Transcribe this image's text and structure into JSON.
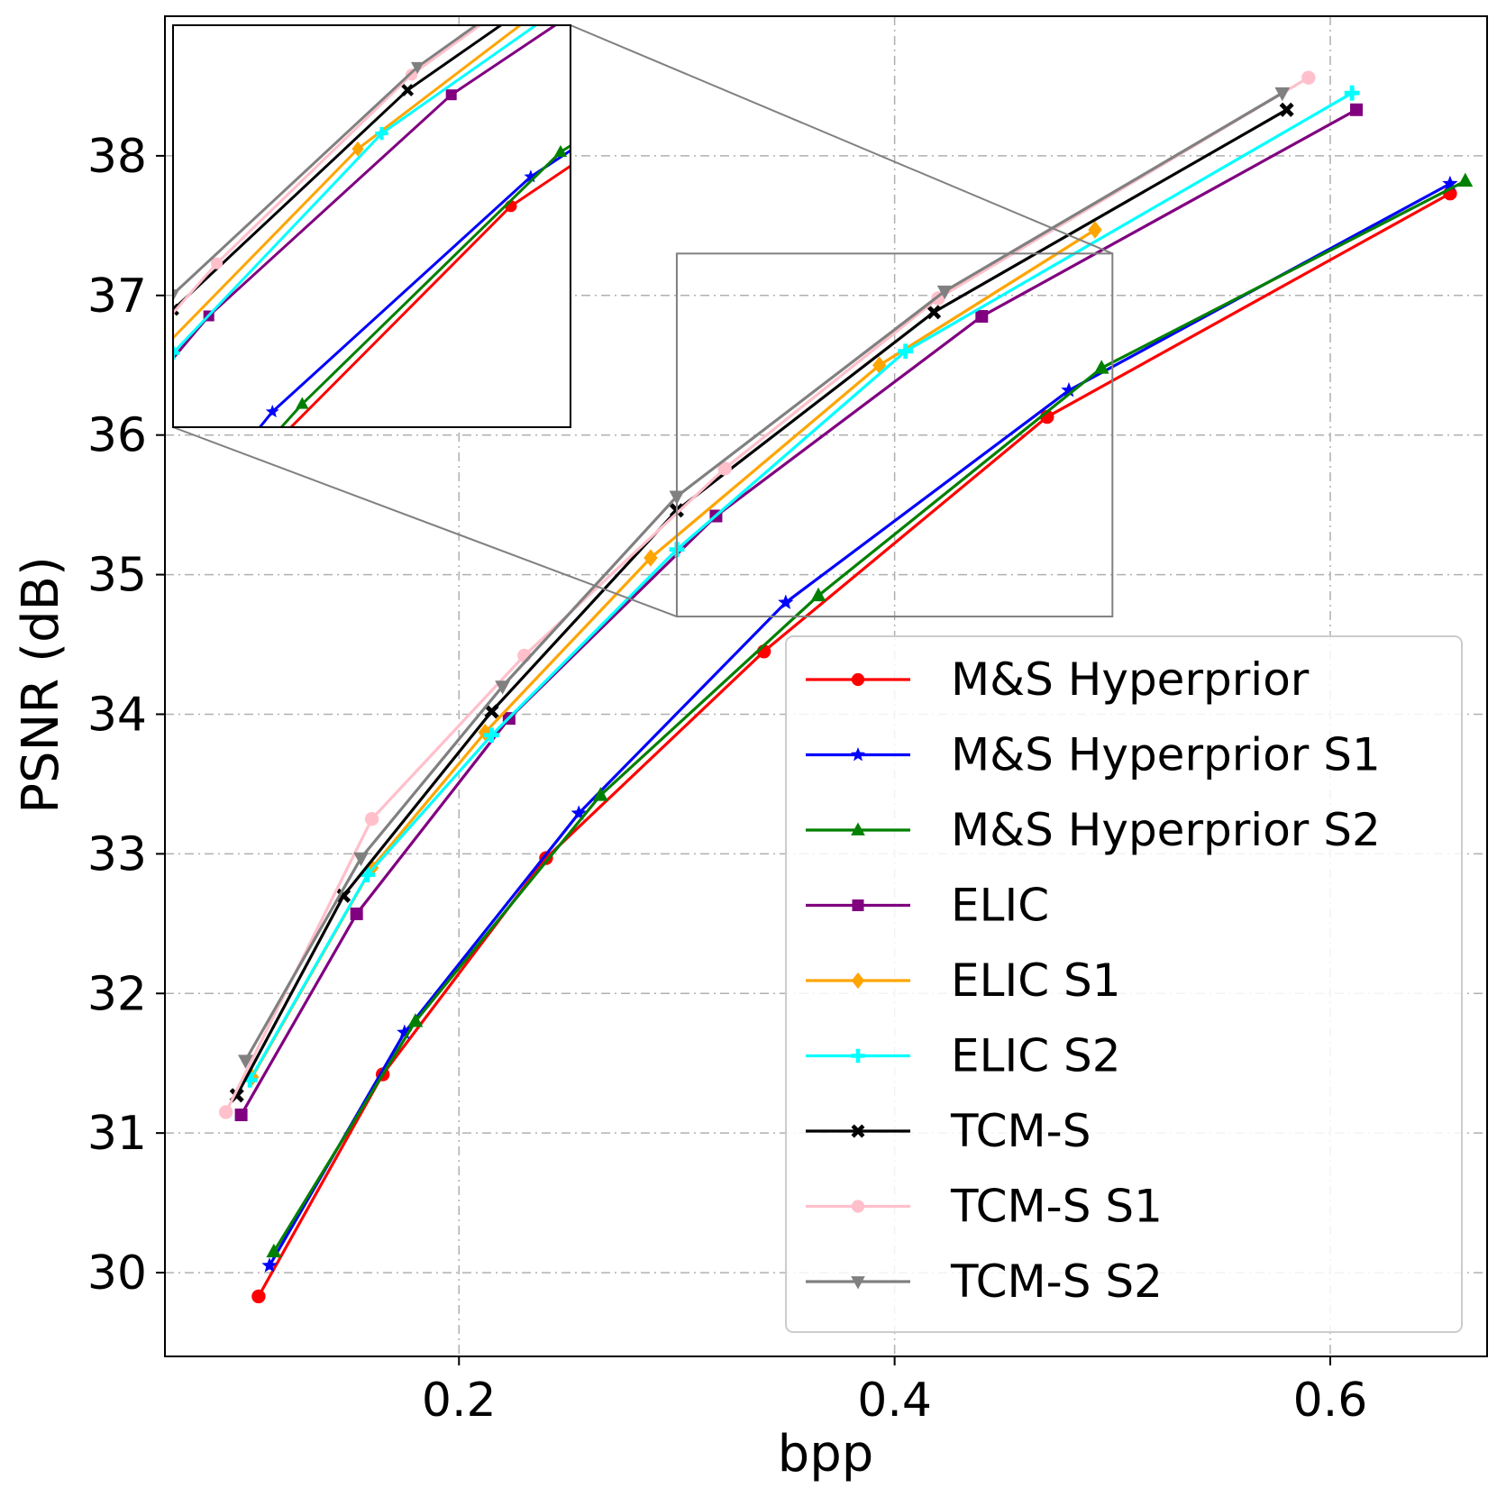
{
  "chart_data": {
    "type": "line",
    "xlabel": "bpp",
    "ylabel": "PSNR (dB)",
    "xlim": [
      0.065,
      0.672
    ],
    "ylim": [
      29.4,
      39.0
    ],
    "xticks": [
      "0.2",
      "0.4",
      "0.6"
    ],
    "xtick_values": [
      0.2,
      0.4,
      0.6
    ],
    "yticks": [
      "30",
      "31",
      "32",
      "33",
      "34",
      "35",
      "36",
      "37",
      "38"
    ],
    "ytick_values": [
      30,
      31,
      32,
      33,
      34,
      35,
      36,
      37,
      38
    ],
    "grid": true,
    "legend_position": "bottom-right",
    "zoom_region": {
      "x": [
        0.3,
        0.5
      ],
      "y": [
        34.7,
        37.3
      ]
    },
    "series": [
      {
        "name": "M&S Hyperprior",
        "color": "#ff0000",
        "marker": "circle",
        "points": [
          [
            0.108,
            29.83
          ],
          [
            0.165,
            31.42
          ],
          [
            0.24,
            32.97
          ],
          [
            0.34,
            34.45
          ],
          [
            0.47,
            36.13
          ],
          [
            0.655,
            37.73
          ]
        ]
      },
      {
        "name": "M&S Hyperprior S1",
        "color": "#0000ff",
        "marker": "star",
        "points": [
          [
            0.113,
            30.05
          ],
          [
            0.175,
            31.72
          ],
          [
            0.255,
            33.29
          ],
          [
            0.35,
            34.8
          ],
          [
            0.48,
            36.32
          ],
          [
            0.655,
            37.8
          ]
        ]
      },
      {
        "name": "M&S Hyperprior S2",
        "color": "#008000",
        "marker": "triangle-up",
        "points": [
          [
            0.115,
            30.15
          ],
          [
            0.18,
            31.8
          ],
          [
            0.265,
            33.42
          ],
          [
            0.365,
            34.85
          ],
          [
            0.495,
            36.48
          ],
          [
            0.662,
            37.82
          ]
        ]
      },
      {
        "name": "ELIC",
        "color": "#800080",
        "marker": "square",
        "points": [
          [
            0.1,
            31.13
          ],
          [
            0.153,
            32.57
          ],
          [
            0.223,
            33.97
          ],
          [
            0.318,
            35.42
          ],
          [
            0.44,
            36.85
          ],
          [
            0.612,
            38.33
          ]
        ]
      },
      {
        "name": "ELIC S1",
        "color": "#ffa500",
        "marker": "diamond",
        "points": [
          [
            0.105,
            31.4
          ],
          [
            0.16,
            32.9
          ],
          [
            0.212,
            33.87
          ],
          [
            0.288,
            35.12
          ],
          [
            0.393,
            36.5
          ],
          [
            0.492,
            37.47
          ]
        ]
      },
      {
        "name": "ELIC S2",
        "color": "#00ffff",
        "marker": "plus",
        "points": [
          [
            0.104,
            31.38
          ],
          [
            0.158,
            32.85
          ],
          [
            0.215,
            33.85
          ],
          [
            0.3,
            35.18
          ],
          [
            0.405,
            36.6
          ],
          [
            0.61,
            38.45
          ]
        ]
      },
      {
        "name": "TCM-S",
        "color": "#000000",
        "marker": "x",
        "points": [
          [
            0.098,
            31.27
          ],
          [
            0.147,
            32.7
          ],
          [
            0.215,
            34.02
          ],
          [
            0.3,
            35.46
          ],
          [
            0.418,
            36.88
          ],
          [
            0.58,
            38.33
          ]
        ]
      },
      {
        "name": "TCM-S S1",
        "color": "#ffc0cb",
        "marker": "circle",
        "points": [
          [
            0.093,
            31.15
          ],
          [
            0.16,
            33.25
          ],
          [
            0.23,
            34.42
          ],
          [
            0.322,
            35.76
          ],
          [
            0.42,
            36.98
          ],
          [
            0.59,
            38.56
          ]
        ]
      },
      {
        "name": "TCM-S S2",
        "color": "#808080",
        "marker": "triangle-down",
        "points": [
          [
            0.102,
            31.52
          ],
          [
            0.155,
            32.97
          ],
          [
            0.22,
            34.2
          ],
          [
            0.3,
            35.56
          ],
          [
            0.423,
            37.03
          ],
          [
            0.578,
            38.45
          ]
        ]
      }
    ]
  }
}
